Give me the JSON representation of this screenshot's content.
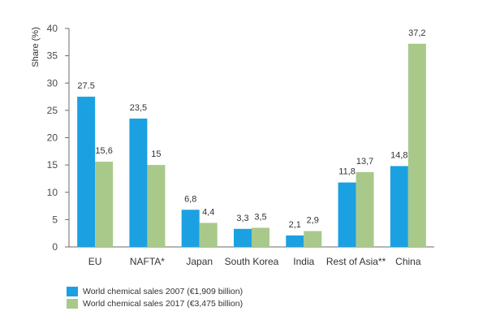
{
  "chart_data": {
    "type": "bar",
    "ylabel": "Share (%)",
    "ylim": [
      0,
      40
    ],
    "yticks": [
      "0",
      "5",
      "10",
      "15",
      "20",
      "25",
      "30",
      "35",
      "40"
    ],
    "categories": [
      "EU",
      "NAFTA*",
      "Japan",
      "South Korea",
      "India",
      "Rest of Asia**",
      "China"
    ],
    "series": [
      {
        "name": "World chemical sales 2007 (€1,909 billion)",
        "color": "#1ba1e2",
        "values": [
          27.5,
          23.5,
          6.8,
          3.3,
          2.1,
          11.8,
          14.8
        ],
        "labels": [
          "27.5",
          "23,5",
          "6,8",
          "3,3",
          "2,1",
          "11,8",
          "14,8"
        ]
      },
      {
        "name": "World chemical sales 2017 (€3,475 billion)",
        "color": "#a9c98a",
        "values": [
          15.6,
          15,
          4.4,
          3.5,
          2.9,
          13.7,
          37.2
        ],
        "labels": [
          "15,6",
          "15",
          "4,4",
          "3,5",
          "2,9",
          "13,7",
          "37,2"
        ]
      }
    ],
    "legend_position": "bottom-left"
  }
}
